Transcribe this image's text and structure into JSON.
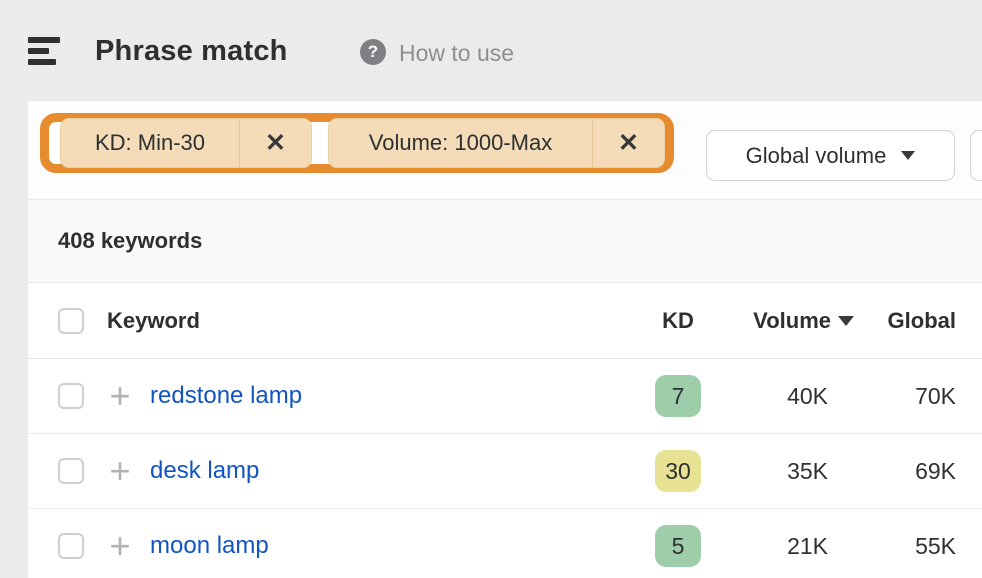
{
  "header": {
    "title": "Phrase match",
    "help_icon": "?",
    "help_label": "How to use"
  },
  "filters": {
    "highlight_color": "#e78c2e",
    "chips": [
      {
        "label": "KD: Min-30",
        "remove_icon": "✕"
      },
      {
        "label": "Volume: 1000-Max",
        "remove_icon": "✕"
      }
    ],
    "volume_mode_button": {
      "label": "Global volume"
    }
  },
  "results": {
    "count_label": "408 keywords"
  },
  "table": {
    "columns": {
      "keyword": "Keyword",
      "kd": "KD",
      "volume": "Volume",
      "global": "Global"
    },
    "sorted_by": "Volume",
    "kd_colors": {
      "easy": "#9ecda9",
      "medium": "#e8e394"
    },
    "rows": [
      {
        "keyword": "redstone lamp",
        "kd": "7",
        "kd_color": "#9ecda9",
        "volume": "40K",
        "global": "70K",
        "expand_icon": "+"
      },
      {
        "keyword": "desk lamp",
        "kd": "30",
        "kd_color": "#e8e394",
        "volume": "35K",
        "global": "69K",
        "expand_icon": "+"
      },
      {
        "keyword": "moon lamp",
        "kd": "5",
        "kd_color": "#9ecda9",
        "volume": "21K",
        "global": "55K",
        "expand_icon": "+"
      }
    ]
  }
}
